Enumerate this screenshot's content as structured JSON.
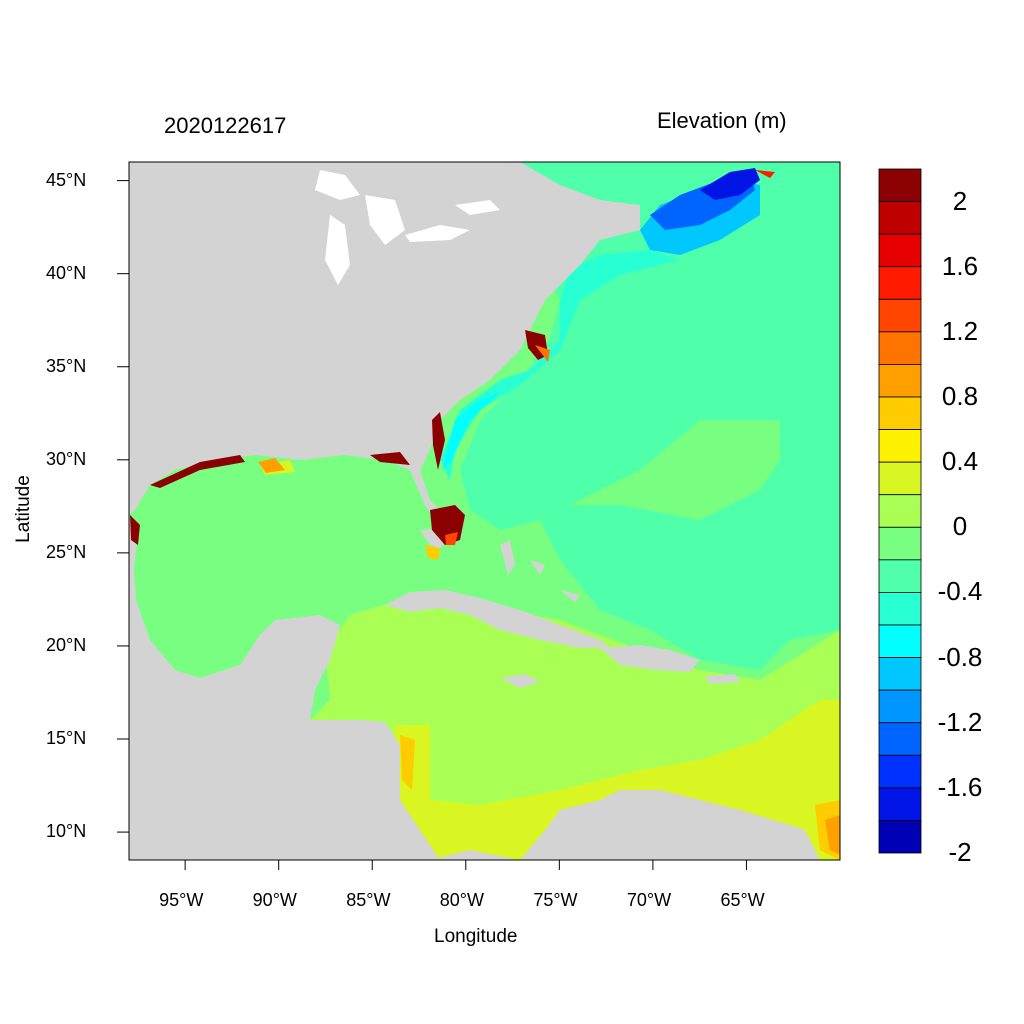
{
  "header": {
    "timestamp": "2020122617",
    "variable": "Elevation (m)"
  },
  "axes": {
    "xlabel": "Longitude",
    "ylabel": "Latitude",
    "x_ticks": [
      "95°W",
      "90°W",
      "85°W",
      "80°W",
      "75°W",
      "70°W",
      "65°W"
    ],
    "y_ticks": [
      "45°N",
      "40°N",
      "35°N",
      "30°N",
      "25°N",
      "20°N",
      "15°N",
      "10°N"
    ],
    "lon_range": [
      -98,
      -60
    ],
    "lat_range": [
      8.5,
      46
    ]
  },
  "colorbar": {
    "labels": [
      "2",
      "1.6",
      "1.2",
      "0.8",
      "0.4",
      "0",
      "-0.4",
      "-0.8",
      "-1.2",
      "-1.6",
      "-2"
    ],
    "colors": [
      "#8b0000",
      "#bf0000",
      "#e60000",
      "#ff1a00",
      "#ff4500",
      "#ff7400",
      "#ffa000",
      "#ffcc00",
      "#fff200",
      "#d9f522",
      "#aaff55",
      "#78ff82",
      "#50ffaa",
      "#28ffd2",
      "#00ffff",
      "#00c8ff",
      "#0096ff",
      "#0064ff",
      "#0032ff",
      "#0014e6",
      "#0000b4"
    ]
  },
  "colors": {
    "land": "#d3d3d3",
    "lakes": "#ffffff"
  }
}
